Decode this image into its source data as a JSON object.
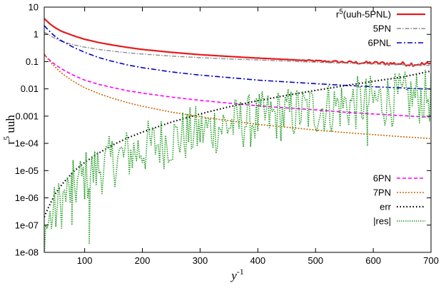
{
  "chart_data": {
    "type": "line",
    "xlabel": {
      "base": "y",
      "sup": "-1"
    },
    "ylabel": {
      "base": "r",
      "sup": "5",
      "rest": " uuh"
    },
    "xlim": [
      30,
      700
    ],
    "ylim": [
      1e-08,
      10
    ],
    "yscale": "log",
    "xticks": [
      100,
      200,
      300,
      400,
      500,
      600,
      700
    ],
    "yticks": [
      {
        "value": 1e-08,
        "label": "1e-08"
      },
      {
        "value": 1e-07,
        "label": "1e-07"
      },
      {
        "value": 1e-06,
        "label": "1e-06"
      },
      {
        "value": 1e-05,
        "label": "1e-05"
      },
      {
        "value": 0.0001,
        "label": "1e-04"
      },
      {
        "value": 0.001,
        "label": "0.001"
      },
      {
        "value": 0.01,
        "label": "0.01"
      },
      {
        "value": 0.1,
        "label": "0.1"
      },
      {
        "value": 1,
        "label": "1"
      },
      {
        "value": 10,
        "label": "10"
      }
    ],
    "grid": false,
    "legends": [
      {
        "position": "top-right",
        "items": [
          {
            "sup_base": "r",
            "sup": "5",
            "rest": "(uuh-5PNL)",
            "series": 0
          },
          {
            "text": "5PN",
            "series": 1
          },
          {
            "text": "6PNL",
            "series": 2
          }
        ]
      },
      {
        "position": "bottom-right",
        "items": [
          {
            "text": "6PN",
            "series": 3
          },
          {
            "text": "7PN",
            "series": 4
          },
          {
            "text": "err",
            "series": 5
          },
          {
            "text": "|res|",
            "series": 6
          }
        ]
      }
    ],
    "series": [
      {
        "name": "r5(uuh-5PNL)",
        "color": "#e41a1c",
        "dash": "",
        "width": 2.2,
        "x": [
          30,
          40,
          50,
          60,
          80,
          100,
          125,
          150,
          175,
          200,
          250,
          300,
          350,
          400,
          450,
          500,
          525,
          550,
          575,
          600,
          625,
          650,
          675,
          700
        ],
        "y": [
          3.8,
          2.4,
          1.7,
          1.3,
          0.9,
          0.66,
          0.5,
          0.4,
          0.33,
          0.28,
          0.22,
          0.18,
          0.155,
          0.135,
          0.12,
          0.105,
          0.1,
          0.095,
          0.09,
          0.088,
          0.085,
          0.082,
          0.08,
          0.078
        ],
        "noise_from": 480,
        "noise_amp": 0.13
      },
      {
        "name": "5PN",
        "color": "#8c8c8c",
        "dash": "6,2,1.5,2",
        "width": 1.4,
        "x": [
          30,
          40,
          50,
          60,
          80,
          100,
          125,
          150,
          175,
          200,
          250,
          300,
          350,
          400,
          450,
          500,
          550,
          600,
          650,
          700
        ],
        "y": [
          1.2,
          0.9,
          0.7,
          0.55,
          0.42,
          0.34,
          0.28,
          0.24,
          0.21,
          0.19,
          0.16,
          0.14,
          0.125,
          0.115,
          0.105,
          0.095,
          0.088,
          0.082,
          0.077,
          0.072
        ]
      },
      {
        "name": "6PNL",
        "color": "#0000cc",
        "dash": "7,3,2,3",
        "width": 1.6,
        "x": [
          30,
          40,
          50,
          60,
          80,
          100,
          125,
          150,
          175,
          200,
          250,
          300,
          350,
          400,
          450,
          500,
          550,
          600,
          650,
          700
        ],
        "y": [
          2.1,
          1.25,
          0.8,
          0.58,
          0.34,
          0.22,
          0.14,
          0.1,
          0.075,
          0.06,
          0.042,
          0.032,
          0.026,
          0.021,
          0.018,
          0.0155,
          0.0135,
          0.012,
          0.0108,
          0.0098
        ]
      },
      {
        "name": "6PN",
        "color": "#ff00ff",
        "dash": "5,3",
        "width": 1.6,
        "x": [
          30,
          40,
          50,
          60,
          80,
          100,
          125,
          150,
          175,
          200,
          250,
          300,
          350,
          400,
          450,
          500,
          550,
          600,
          650,
          700
        ],
        "y": [
          0.18,
          0.11,
          0.075,
          0.054,
          0.032,
          0.021,
          0.0145,
          0.011,
          0.0085,
          0.007,
          0.005,
          0.0038,
          0.003,
          0.0024,
          0.002,
          0.0017,
          0.0014,
          0.0012,
          0.00104,
          0.00092
        ]
      },
      {
        "name": "7PN",
        "color": "#cc6600",
        "dash": "2,2",
        "width": 1.6,
        "x": [
          30,
          40,
          50,
          60,
          80,
          100,
          125,
          150,
          175,
          200,
          250,
          300,
          350,
          400,
          450,
          500,
          550,
          600,
          650,
          700
        ],
        "y": [
          0.19,
          0.1,
          0.06,
          0.038,
          0.019,
          0.011,
          0.0066,
          0.0044,
          0.0031,
          0.0023,
          0.0014,
          0.00095,
          0.00068,
          0.0005,
          0.00039,
          0.00031,
          0.00025,
          0.00021,
          0.000175,
          0.00015
        ]
      },
      {
        "name": "err",
        "color": "#000000",
        "dash": "1.5,3",
        "width": 2.2,
        "x": [
          30,
          40,
          50,
          60,
          80,
          100,
          125,
          150,
          175,
          200,
          250,
          300,
          350,
          400,
          450,
          500,
          550,
          600,
          650,
          700
        ],
        "y": [
          2e-07,
          6e-07,
          1.5e-06,
          3e-06,
          9e-06,
          2e-05,
          4.5e-05,
          9e-05,
          0.00016,
          0.00026,
          0.0006,
          0.0012,
          0.0022,
          0.0037,
          0.0058,
          0.0088,
          0.013,
          0.019,
          0.027,
          0.045
        ]
      },
      {
        "name": "|res|",
        "color": "#2ca02c",
        "dash": "1.5,1.5",
        "width": 1.6,
        "x": [
          30,
          40,
          50,
          60,
          80,
          100,
          125,
          150,
          175,
          200,
          250,
          300,
          350,
          400,
          450,
          500,
          550,
          600,
          650,
          700
        ],
        "y": [
          1.5e-07,
          4e-07,
          9e-07,
          1.8e-06,
          6e-06,
          1.5e-05,
          3e-05,
          6e-05,
          0.0001,
          0.00016,
          0.00035,
          0.0007,
          0.0012,
          0.0019,
          0.003,
          0.0045,
          0.0065,
          0.0085,
          0.011,
          0.013
        ],
        "noise_amp": 2.0,
        "noise_dense": true,
        "spikes": [
          [
            108,
            2e-08
          ],
          [
            78,
            1e-07
          ],
          [
            590,
            8e-05
          ]
        ]
      }
    ]
  }
}
